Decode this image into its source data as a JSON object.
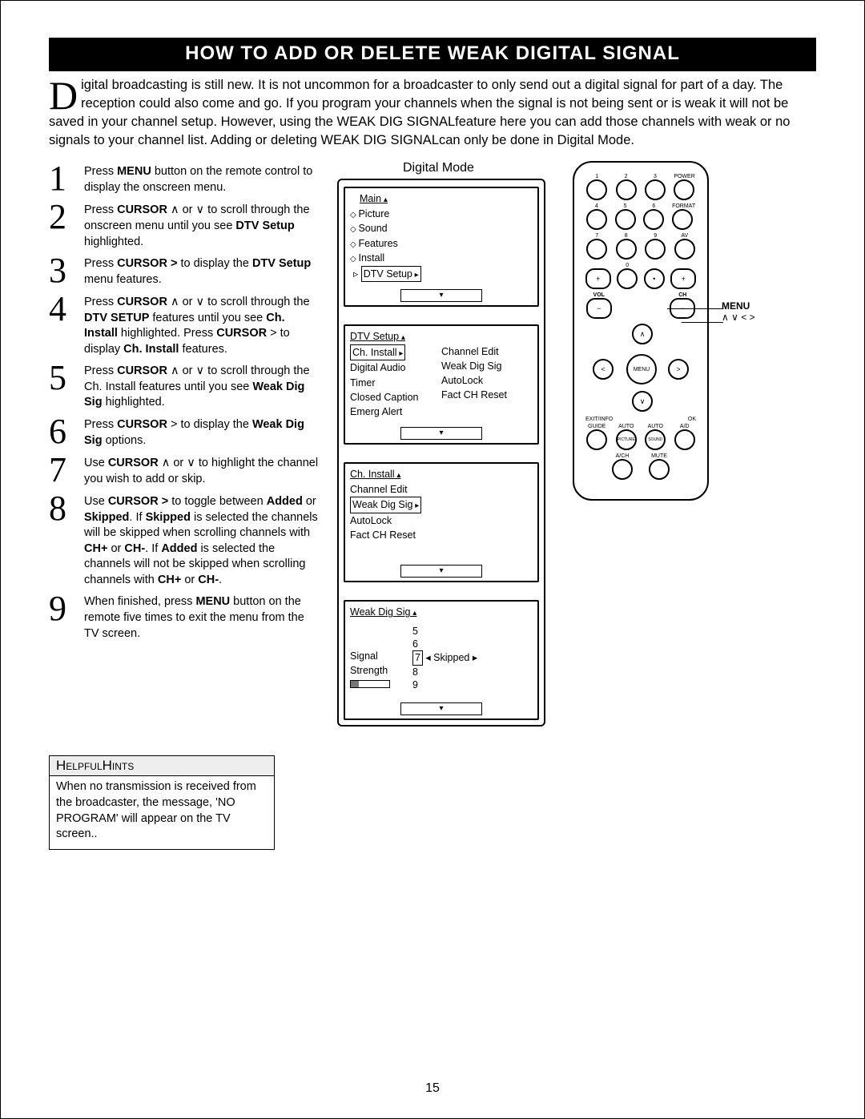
{
  "page_number": "15",
  "title": "HOW TO ADD OR DELETE WEAK DIGITAL SIGNAL",
  "intro_dropcap": "D",
  "intro_text": "igital broadcasting is still new.  It is not uncommon for a broadcaster to only send out a digital signal for part of a day.  The  reception could also come and go.  If you program your channels when the signal is not being sent or is weak it will not be saved in your channel setup.  However, using the WEAK DIG SIGNALfeature here you can add those channels with weak or no signals to your channel list.   Adding or deleting WEAK DIG SIGNALcan only be done in Digital Mode.",
  "mode_label": "Digital Mode",
  "steps": [
    {
      "n": "1",
      "html": "Press <b>MENU</b> button on the remote control to display the onscreen menu."
    },
    {
      "n": "2",
      "html": "Press <b>CURSOR</b>  ∧ or  ∨ to scroll through the onscreen menu until you see <b>DTV Setup</b>  highlighted."
    },
    {
      "n": "3",
      "html": "Press <b>CURSOR  ></b> to display the <b>DTV Setup</b> menu features."
    },
    {
      "n": "4",
      "html": "Press <b>CURSOR</b>  ∧ or ∨ to scroll through the <b>DTV SETUP</b> features until you see <b>Ch. Install</b> highlighted.  Press <b>CURSOR</b> > to display <b>Ch. Install</b> features."
    },
    {
      "n": "5",
      "html": "Press <b>CURSOR</b> ∧ or ∨ to scroll through  the Ch. Install features until you see <b>Weak Dig Sig</b> highlighted."
    },
    {
      "n": "6",
      "html": "Press <b>CURSOR</b>  > to display the <b>Weak Dig Sig</b> options."
    },
    {
      "n": "7",
      "html": "Use  <b>CURSOR</b> ∧ or ∨ to highlight the channel you wish to add or skip."
    },
    {
      "n": "8",
      "html": "Use <b>CURSOR  ></b>  to toggle between <b>Added</b> or <b>Skipped</b>.  If <b>Skipped</b> is selected the channels will be skipped when scrolling channels with <b>CH+</b> or <b>CH-</b>.  If <b>Added</b> is selected the channels will not be skipped when scrolling channels with <b>CH+</b> or <b>CH-</b>."
    },
    {
      "n": "9",
      "html": "When finished, press <b>MENU</b> button on the remote five times to exit the menu from the TV screen."
    }
  ],
  "screen1": {
    "header": "Main",
    "items": [
      "Picture",
      "Sound",
      "Features",
      "Install"
    ],
    "selected": "DTV Setup"
  },
  "screen2": {
    "header": "DTV Setup",
    "left": [
      "Ch. Install",
      "Digital Audio",
      "Timer",
      "Closed Caption",
      "Emerg Alert"
    ],
    "right": [
      "Channel Edit",
      "Weak Dig Sig",
      "AutoLock",
      "Fact CH Reset"
    ],
    "selected_left": "Ch. Install"
  },
  "screen3": {
    "header": "Ch. Install",
    "items": [
      "Channel Edit",
      "Weak Dig Sig",
      "AutoLock",
      "Fact CH Reset"
    ],
    "selected": "Weak Dig Sig"
  },
  "screen4": {
    "header": "Weak Dig Sig",
    "channels": [
      "5",
      "6",
      "7",
      "8",
      "9"
    ],
    "selected_channel": "7",
    "status": "Skipped",
    "left_label1": "Signal",
    "left_label2": "Strength"
  },
  "remote": {
    "num_labels": [
      "1",
      "2",
      "3",
      "4",
      "5",
      "6",
      "7",
      "8",
      "9",
      "0"
    ],
    "top_right_labels": [
      "POWER",
      "FORMAT",
      "AV"
    ],
    "vol": "VOL",
    "ch": "CH",
    "menu": "MENU",
    "exit": "EXIT/INFO",
    "ok": "OK",
    "bottom_row1": [
      "GUIDE",
      "AUTO",
      "AUTO",
      "A/D"
    ],
    "bottom_row1_sub": [
      "",
      "PICTURE",
      "SOUND",
      ""
    ],
    "bottom_row2": [
      "A/CH",
      "MUTE"
    ]
  },
  "side_label_menu": "MENU",
  "side_label_arrows": "∧  ∨ <  >",
  "hints": {
    "title": "HelpfulHints",
    "body": "When no transmission is received from the broadcaster, the message, 'NO PROGRAM' will appear on the TV screen.."
  },
  "colors": {
    "background": "#ffffff",
    "text": "#000000",
    "title_bg": "#000000",
    "title_fg": "#ffffff"
  }
}
